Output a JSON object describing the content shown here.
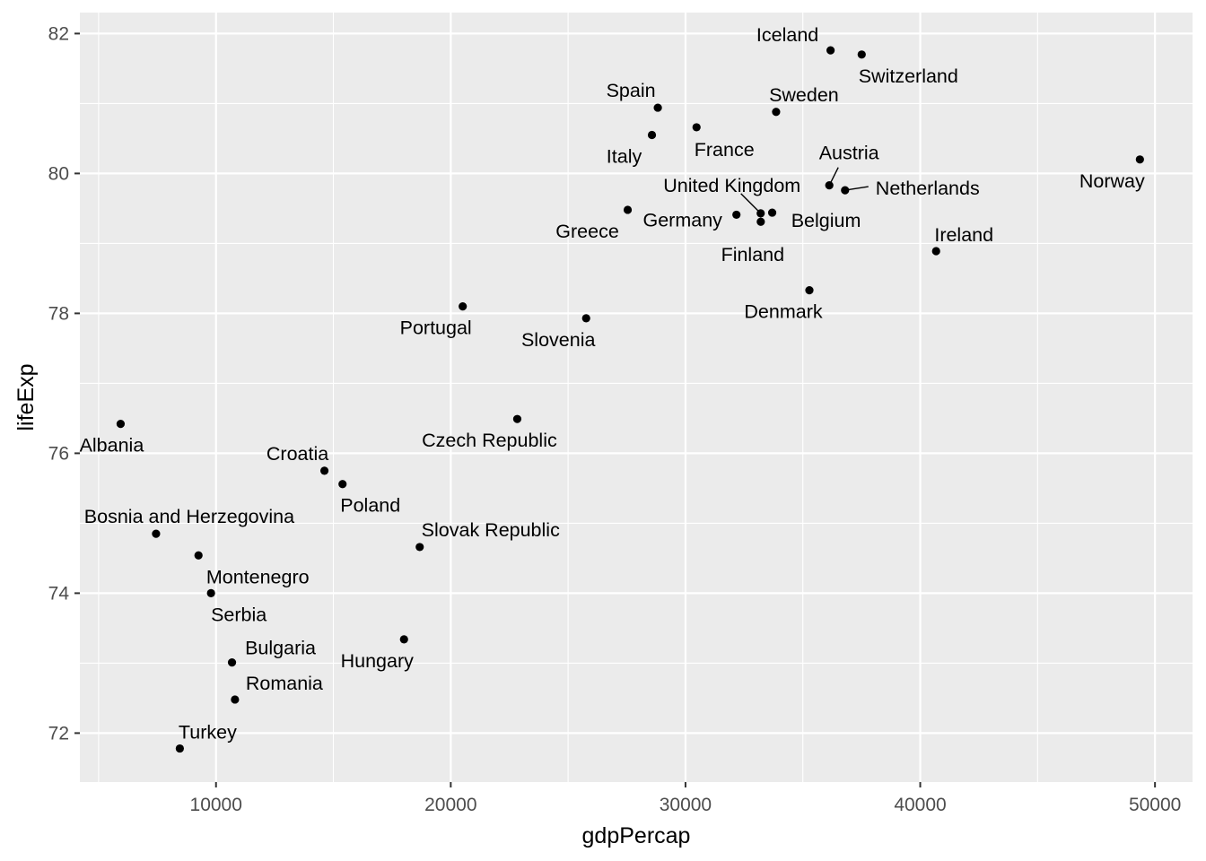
{
  "chart_data": {
    "type": "scatter",
    "xlabel": "gdpPercap",
    "ylabel": "lifeExp",
    "xlim": [
      4200,
      51600
    ],
    "ylim": [
      71.3,
      82.3
    ],
    "x_ticks": [
      10000,
      20000,
      30000,
      40000,
      50000
    ],
    "y_ticks": [
      72,
      74,
      76,
      78,
      80,
      82
    ],
    "x_tick_labels": [
      "10000",
      "20000",
      "30000",
      "40000",
      "50000"
    ],
    "y_tick_labels": [
      "72",
      "74",
      "76",
      "78",
      "80",
      "82"
    ],
    "grid": true,
    "background": "#ebebeb",
    "point_color": "#000000",
    "points": [
      {
        "label": "Iceland",
        "x": 36180,
        "y": 81.76
      },
      {
        "label": "Switzerland",
        "x": 37506,
        "y": 81.7
      },
      {
        "label": "Spain",
        "x": 28821,
        "y": 80.94
      },
      {
        "label": "Sweden",
        "x": 33860,
        "y": 80.88
      },
      {
        "label": "France",
        "x": 30470,
        "y": 80.66
      },
      {
        "label": "Italy",
        "x": 28570,
        "y": 80.55
      },
      {
        "label": "Norway",
        "x": 49357,
        "y": 80.2
      },
      {
        "label": "Austria",
        "x": 36126,
        "y": 79.83
      },
      {
        "label": "Netherlands",
        "x": 36798,
        "y": 79.76
      },
      {
        "label": "Greece",
        "x": 27538,
        "y": 79.48
      },
      {
        "label": "Belgium",
        "x": 33693,
        "y": 79.44
      },
      {
        "label": "United Kingdom",
        "x": 33203,
        "y": 79.43
      },
      {
        "label": "Germany",
        "x": 32170,
        "y": 79.41
      },
      {
        "label": "Finland",
        "x": 33207,
        "y": 79.31
      },
      {
        "label": "Ireland",
        "x": 40676,
        "y": 78.89
      },
      {
        "label": "Denmark",
        "x": 35278,
        "y": 78.33
      },
      {
        "label": "Portugal",
        "x": 20510,
        "y": 78.1
      },
      {
        "label": "Slovenia",
        "x": 25768,
        "y": 77.93
      },
      {
        "label": "Czech Republic",
        "x": 22833,
        "y": 76.49
      },
      {
        "label": "Albania",
        "x": 5937,
        "y": 76.42
      },
      {
        "label": "Croatia",
        "x": 14619,
        "y": 75.75
      },
      {
        "label": "Poland",
        "x": 15390,
        "y": 75.56
      },
      {
        "label": "Bosnia and Herzegovina",
        "x": 7446,
        "y": 74.85
      },
      {
        "label": "Slovak Republic",
        "x": 18678,
        "y": 74.66
      },
      {
        "label": "Montenegro",
        "x": 9254,
        "y": 74.54
      },
      {
        "label": "Serbia",
        "x": 9787,
        "y": 74.0
      },
      {
        "label": "Hungary",
        "x": 18009,
        "y": 73.34
      },
      {
        "label": "Bulgaria",
        "x": 10681,
        "y": 73.01
      },
      {
        "label": "Romania",
        "x": 10808,
        "y": 72.48
      },
      {
        "label": "Turkey",
        "x": 8458,
        "y": 71.78
      }
    ]
  }
}
